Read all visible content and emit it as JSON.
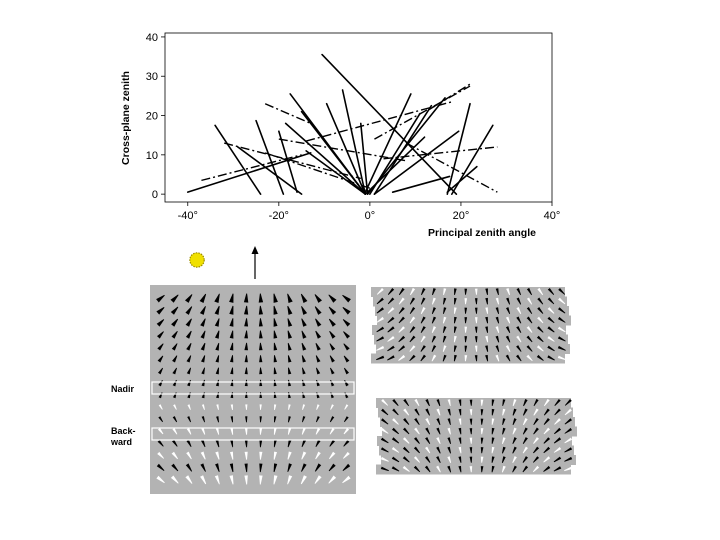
{
  "chart_data": [
    {
      "type": "line",
      "title": "",
      "xlabel": "Principal zenith angle",
      "ylabel": "Cross-plane zenith",
      "xlim": [
        -45,
        40
      ],
      "ylim": [
        -2,
        41
      ],
      "xticks": [
        -40,
        -20,
        0,
        20,
        40
      ],
      "xtick_labels": [
        "-40°",
        "-20°",
        "0°",
        "20°",
        "40°"
      ],
      "yticks": [
        0,
        10,
        20,
        30,
        40
      ],
      "ytick_labels": [
        "0",
        "10",
        "20",
        "30",
        "40"
      ],
      "grid": false,
      "solid_segments": [
        [
          [
            -25,
            18.7
          ],
          [
            -19,
            0
          ]
        ],
        [
          [
            -20,
            16
          ],
          [
            -16,
            0.5
          ]
        ],
        [
          [
            -18.5,
            18
          ],
          [
            -1,
            0
          ]
        ],
        [
          [
            -17.5,
            25.5
          ],
          [
            -1,
            0
          ]
        ],
        [
          [
            -15,
            21
          ],
          [
            -1,
            0
          ]
        ],
        [
          [
            -14,
            11
          ],
          [
            -1,
            0
          ]
        ],
        [
          [
            -9.5,
            23
          ],
          [
            -1,
            0
          ]
        ],
        [
          [
            -6,
            26.5
          ],
          [
            -1,
            0
          ]
        ],
        [
          [
            -2,
            18
          ],
          [
            -0.5,
            0
          ]
        ],
        [
          [
            -10.5,
            35.5
          ],
          [
            19,
            0
          ]
        ],
        [
          [
            -29,
            12
          ],
          [
            -15,
            0
          ]
        ],
        [
          [
            -34,
            17.5
          ],
          [
            -24,
            0
          ]
        ],
        [
          [
            -40,
            0.5
          ],
          [
            -13,
            10.5
          ]
        ],
        [
          [
            9,
            25.5
          ],
          [
            -1,
            0.5
          ]
        ],
        [
          [
            11,
            20.5
          ],
          [
            0,
            0
          ]
        ],
        [
          [
            12,
            14.5
          ],
          [
            -1,
            0
          ]
        ],
        [
          [
            13.5,
            22.5
          ],
          [
            1,
            0
          ]
        ],
        [
          [
            16.5,
            24.5
          ],
          [
            -0.5,
            0
          ]
        ],
        [
          [
            19.5,
            16
          ],
          [
            1,
            0
          ]
        ],
        [
          [
            5,
            0.5
          ],
          [
            17.5,
            4.5
          ]
        ],
        [
          [
            22,
            23
          ],
          [
            17,
            0
          ]
        ],
        [
          [
            27,
            17.5
          ],
          [
            18,
            0
          ]
        ],
        [
          [
            23.5,
            7
          ],
          [
            17,
            0.5
          ]
        ]
      ],
      "dashed_segments": [
        [
          [
            -37,
            3.5
          ],
          [
            -15,
            10
          ]
        ],
        [
          [
            -14,
            13.5
          ],
          [
            18,
            23.5
          ]
        ],
        [
          [
            -32,
            13
          ],
          [
            -2,
            4
          ]
        ],
        [
          [
            -23,
            10.5
          ],
          [
            0,
            1.5
          ]
        ],
        [
          [
            -20,
            14
          ],
          [
            8,
            8.5
          ]
        ],
        [
          [
            3,
            9
          ],
          [
            28,
            12
          ]
        ],
        [
          [
            1,
            14
          ],
          [
            22,
            27.5
          ]
        ],
        [
          [
            8,
            13
          ],
          [
            28,
            0.5
          ]
        ],
        [
          [
            13,
            21.5
          ],
          [
            22,
            28
          ]
        ],
        [
          [
            -23,
            23
          ],
          [
            -13,
            18
          ]
        ]
      ]
    },
    {
      "type": "vector-field",
      "title": "",
      "overlay_labels": [
        "Nadir",
        "Back-\nward"
      ],
      "grid": {
        "rows": 16,
        "cols": 14
      },
      "highlight_rows": [
        8,
        12
      ]
    },
    {
      "type": "vector-field",
      "title": "",
      "grid": {
        "rows": 8,
        "cols": 18
      }
    },
    {
      "type": "vector-field",
      "title": "",
      "grid": {
        "rows": 8,
        "cols": 18
      }
    }
  ],
  "labels": {
    "nadir": "Nadir",
    "backward": "Back-\nward"
  },
  "colors": {
    "sun_fill": "#f0e000",
    "sun_stroke": "#9a8a00",
    "panel_bg": "#b3b3b3",
    "line": "#000000"
  },
  "icons": [
    "sun-icon",
    "arrow-up-icon"
  ]
}
